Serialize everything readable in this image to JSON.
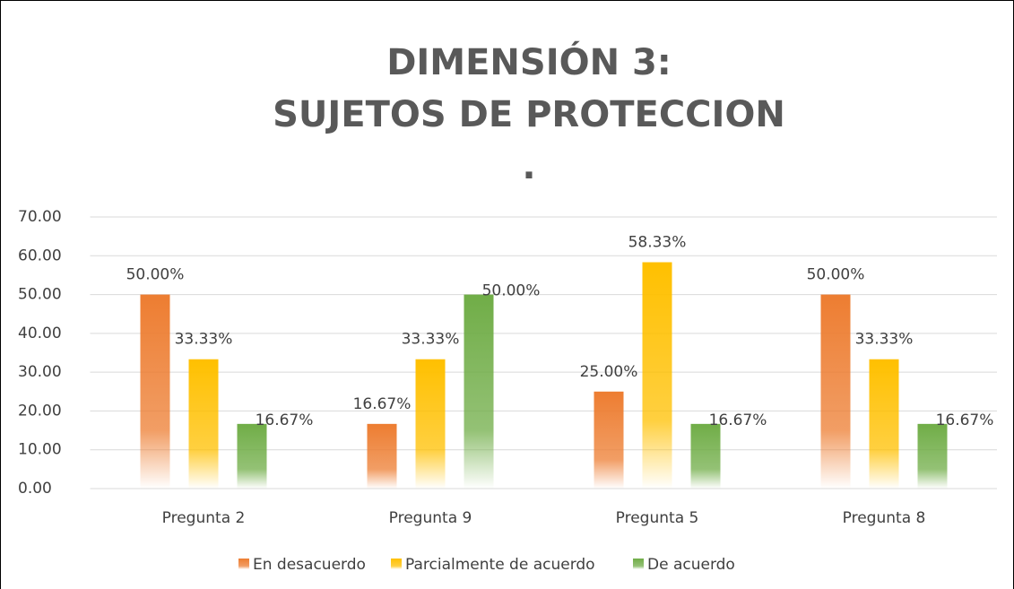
{
  "chart_data": {
    "type": "bar",
    "title": [
      "DIMENSIÓN 3:",
      "SUJETOS DE PROTECCION",
      "."
    ],
    "categories": [
      "Pregunta 2",
      "Pregunta 9",
      "Pregunta 5",
      "Pregunta 8"
    ],
    "series": [
      {
        "name": "En desacuerdo",
        "color": "#ed7d31",
        "values": [
          50,
          16.67,
          25,
          50
        ],
        "value_labels": [
          "50.00%",
          "16.67%",
          "25.00%",
          "50.00%"
        ]
      },
      {
        "name": "Parcialmente de acuerdo",
        "color": "#ffc000",
        "values": [
          33.33,
          33.33,
          58.33,
          33.33
        ],
        "value_labels": [
          "33.33%",
          "33.33%",
          "58.33%",
          "33.33%"
        ]
      },
      {
        "name": "De acuerdo",
        "color": "#70ad47",
        "values": [
          16.67,
          50,
          16.67,
          16.67
        ],
        "value_labels": [
          "16.67%",
          "50.00%",
          "16.67%",
          "16.67%"
        ]
      }
    ],
    "ylim": [
      0,
      70
    ],
    "yticks": [
      {
        "value": 0,
        "label": "0.00"
      },
      {
        "value": 10,
        "label": "10.00"
      },
      {
        "value": 20,
        "label": "20.00"
      },
      {
        "value": 30,
        "label": "30.00"
      },
      {
        "value": 40,
        "label": "40.00"
      },
      {
        "value": 50,
        "label": "50.00"
      },
      {
        "value": 60,
        "label": "60.00"
      },
      {
        "value": 70,
        "label": "70.00"
      }
    ],
    "grid": true,
    "legend": "bottom"
  }
}
